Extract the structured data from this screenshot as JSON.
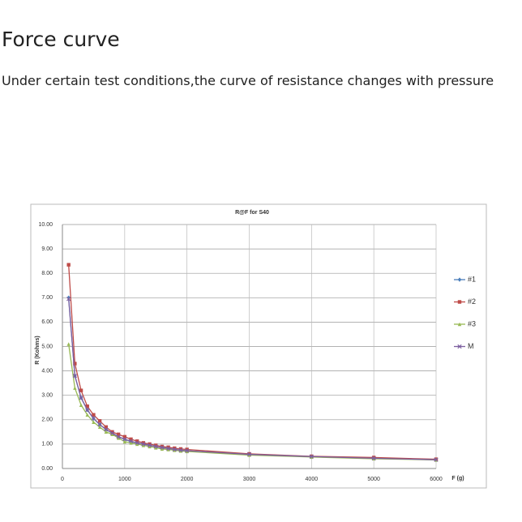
{
  "heading": "Force curve",
  "description": "Under certain test conditions,the curve of resistance changes with pressure",
  "chart_data": {
    "type": "line",
    "title": "R@F for S40",
    "x_label": "F (g)",
    "y_label": "R (Kohms)",
    "x": [
      100,
      200,
      300,
      400,
      500,
      600,
      700,
      800,
      900,
      1000,
      1100,
      1200,
      1300,
      1400,
      1500,
      1600,
      1700,
      1800,
      1900,
      2000,
      3000,
      4000,
      5000,
      6000
    ],
    "series": [
      {
        "name": "#1",
        "color": "#4a7ebb",
        "marker": "diamond",
        "values": [
          7.0,
          3.8,
          2.9,
          2.4,
          2.05,
          1.8,
          1.6,
          1.45,
          1.3,
          1.2,
          1.1,
          1.05,
          1.0,
          0.95,
          0.9,
          0.85,
          0.82,
          0.78,
          0.75,
          0.72,
          0.58,
          0.48,
          0.42,
          0.36
        ]
      },
      {
        "name": "#2",
        "color": "#be4b48",
        "marker": "square",
        "values": [
          8.35,
          4.3,
          3.2,
          2.55,
          2.2,
          1.95,
          1.7,
          1.5,
          1.4,
          1.3,
          1.2,
          1.12,
          1.05,
          1.0,
          0.95,
          0.9,
          0.87,
          0.83,
          0.8,
          0.78,
          0.6,
          0.5,
          0.45,
          0.38
        ]
      },
      {
        "name": "#3",
        "color": "#98b954",
        "marker": "triangle",
        "values": [
          5.1,
          3.3,
          2.6,
          2.2,
          1.9,
          1.7,
          1.5,
          1.4,
          1.25,
          1.1,
          1.05,
          1.0,
          0.95,
          0.9,
          0.85,
          0.8,
          0.78,
          0.75,
          0.72,
          0.7,
          0.55,
          0.47,
          0.4,
          0.35
        ]
      },
      {
        "name": "M",
        "color": "#7d60a0",
        "marker": "cross",
        "values": [
          6.95,
          3.8,
          2.9,
          2.4,
          2.05,
          1.8,
          1.6,
          1.45,
          1.3,
          1.2,
          1.12,
          1.05,
          1.0,
          0.95,
          0.9,
          0.86,
          0.82,
          0.78,
          0.75,
          0.73,
          0.58,
          0.49,
          0.42,
          0.36
        ]
      }
    ],
    "xlim": [
      0,
      6000
    ],
    "xticks": [
      0,
      1000,
      2000,
      3000,
      4000,
      5000,
      6000
    ],
    "ylim": [
      0,
      10
    ],
    "yticks": [
      {
        "value": 0,
        "label": "0.00"
      },
      {
        "value": 1,
        "label": "1.00"
      },
      {
        "value": 2,
        "label": "2.00"
      },
      {
        "value": 3,
        "label": "3.00"
      },
      {
        "value": 4,
        "label": "4.00"
      },
      {
        "value": 5,
        "label": "5.00"
      },
      {
        "value": 6,
        "label": "6.00"
      },
      {
        "value": 7,
        "label": "7.00"
      },
      {
        "value": 8,
        "label": "8.00"
      },
      {
        "value": 9,
        "label": "9.00"
      },
      {
        "value": 10,
        "label": "10.00"
      }
    ],
    "grid": true,
    "legend": "right"
  }
}
